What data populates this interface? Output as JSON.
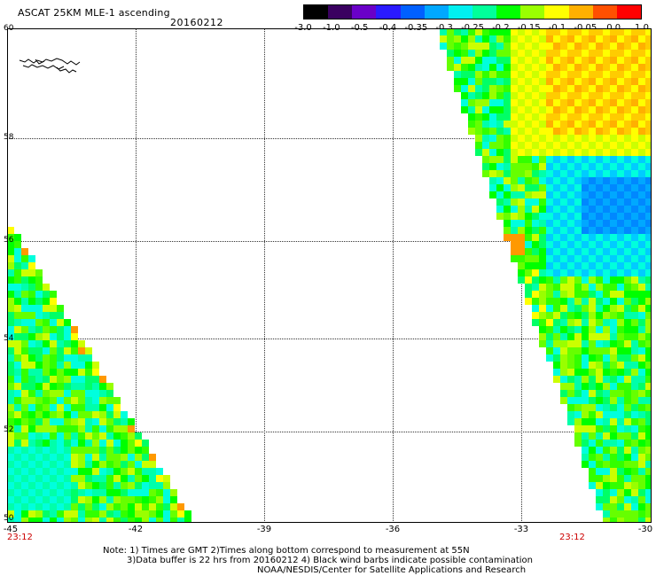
{
  "header": {
    "title": "ASCAT 25KM MLE-1 ascending",
    "date": "20160212"
  },
  "colorbar": {
    "labels": [
      "-3.0",
      "-1.0",
      "-0.5",
      "-0.4",
      "-0.35",
      "-0.3",
      "-0.25",
      "-0.2",
      "-0.15",
      "-0.1",
      "-0.05",
      "0.0",
      "1.0"
    ],
    "colors": [
      "#000000",
      "#3a0060",
      "#6a00c8",
      "#2a1aff",
      "#0060ff",
      "#00a8ff",
      "#00f0f0",
      "#00ff9a",
      "#00ff00",
      "#9aff00",
      "#ffff00",
      "#ffb000",
      "#ff5000",
      "#ff0000"
    ]
  },
  "map": {
    "lat_labels": [
      "60",
      "58",
      "56",
      "54",
      "52",
      "50"
    ],
    "lon_labels": [
      "-45",
      "-42",
      "-39",
      "-36",
      "-33",
      "-30"
    ],
    "time_labels": [
      "23:12",
      "23:12"
    ]
  },
  "notes": {
    "line1": "Note: 1) Times are GMT 2)Times along bottom correspond to measurement at 55N",
    "line2": "3)Data buffer is 22 hrs from 20160212 4) Black wind barbs indicate possible contamination",
    "line3": "NOAA/NESDIS/Center for Satellite Applications and Research"
  }
}
